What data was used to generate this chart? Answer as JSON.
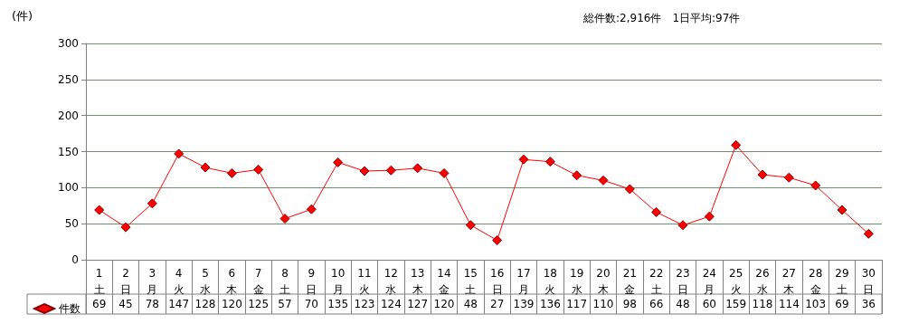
{
  "chart_data": {
    "type": "line",
    "ylabel": "(件)",
    "subtitle": "総件数:2,916件　1日平均:97件",
    "categories": [
      "1\n土",
      "2\n日",
      "3\n月",
      "4\n火",
      "5\n水",
      "6\n木",
      "7\n金",
      "8\n土",
      "9\n日",
      "10\n月",
      "11\n火",
      "12\n水",
      "13\n木",
      "14\n金",
      "15\n土",
      "16\n日",
      "17\n月",
      "18\n火",
      "19\n水",
      "20\n木",
      "21\n金",
      "22\n土",
      "23\n日",
      "24\n月",
      "25\n火",
      "26\n水",
      "27\n木",
      "28\n金",
      "29\n土",
      "30\n日"
    ],
    "series": [
      {
        "name": "件数",
        "color": "#ff0000",
        "values": [
          69,
          45,
          78,
          147,
          128,
          120,
          125,
          57,
          70,
          135,
          123,
          124,
          127,
          120,
          48,
          27,
          139,
          136,
          117,
          110,
          98,
          66,
          48,
          60,
          159,
          118,
          114,
          103,
          69,
          36
        ]
      }
    ],
    "ylim": [
      0,
      300
    ],
    "yticks": [
      0,
      50,
      100,
      150,
      200,
      250,
      300
    ],
    "grid": "y",
    "marker": "diamond",
    "line_style": "solid",
    "legend": "bottom left",
    "data_labels": true
  }
}
